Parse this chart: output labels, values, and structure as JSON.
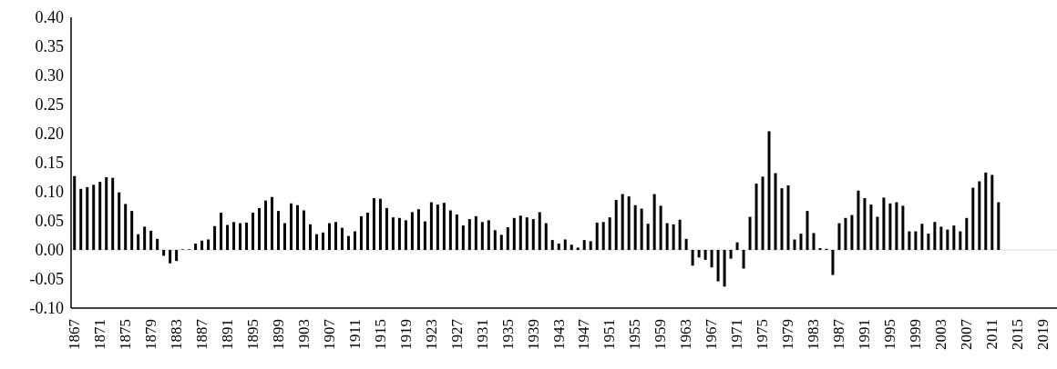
{
  "chart_data": {
    "type": "bar",
    "categories": [
      "1867",
      null,
      null,
      null,
      "1871",
      null,
      null,
      null,
      "1875",
      null,
      null,
      null,
      "1879",
      null,
      null,
      null,
      "1883",
      null,
      null,
      null,
      "1887",
      null,
      null,
      null,
      "1891",
      null,
      null,
      null,
      "1895",
      null,
      null,
      null,
      "1899",
      null,
      null,
      null,
      "1903",
      null,
      null,
      null,
      "1907",
      null,
      null,
      null,
      "1911",
      null,
      null,
      null,
      "1915",
      null,
      null,
      null,
      "1919",
      null,
      null,
      null,
      "1923",
      null,
      null,
      null,
      "1927",
      null,
      null,
      null,
      "1931",
      null,
      null,
      null,
      "1935",
      null,
      null,
      null,
      "1939",
      null,
      null,
      null,
      "1943",
      null,
      null,
      null,
      "1947",
      null,
      null,
      null,
      "1951",
      null,
      null,
      null,
      "1955",
      null,
      null,
      null,
      "1959",
      null,
      null,
      null,
      "1963",
      null,
      null,
      null,
      "1967",
      null,
      null,
      null,
      "1971",
      null,
      null,
      null,
      "1975",
      null,
      null,
      null,
      "1979",
      null,
      null,
      null,
      "1983",
      null,
      null,
      null,
      "1987",
      null,
      null,
      null,
      "1991",
      null,
      null,
      null,
      "1995",
      null,
      null,
      null,
      "1999",
      null,
      null,
      null,
      "2003",
      null,
      null,
      null,
      "2007",
      null,
      null,
      null,
      "2011",
      null,
      null,
      null,
      "2015",
      null,
      null,
      null,
      "2019",
      null,
      null
    ],
    "values": [
      0.127,
      0.105,
      0.108,
      0.112,
      0.117,
      0.125,
      0.124,
      0.099,
      0.079,
      0.067,
      0.027,
      0.04,
      0.033,
      0.019,
      -0.01,
      -0.023,
      -0.019,
      0.001,
      0.001,
      0.011,
      0.016,
      0.018,
      0.041,
      0.064,
      0.043,
      0.048,
      0.046,
      0.047,
      0.064,
      0.072,
      0.085,
      0.091,
      0.067,
      0.046,
      0.08,
      0.077,
      0.068,
      0.044,
      0.027,
      0.03,
      0.046,
      0.048,
      0.038,
      0.024,
      0.032,
      0.058,
      0.064,
      0.089,
      0.088,
      0.072,
      0.056,
      0.055,
      0.051,
      0.065,
      0.07,
      0.049,
      0.082,
      0.078,
      0.081,
      0.068,
      0.061,
      0.042,
      0.053,
      0.058,
      0.048,
      0.051,
      0.034,
      0.026,
      0.039,
      0.055,
      0.059,
      0.056,
      0.053,
      0.065,
      0.046,
      0.017,
      0.011,
      0.018,
      0.009,
      0.004,
      0.017,
      0.015,
      0.047,
      0.048,
      0.056,
      0.086,
      0.096,
      0.092,
      0.077,
      0.071,
      0.045,
      0.096,
      0.076,
      0.046,
      0.044,
      0.052,
      0.019,
      -0.027,
      -0.013,
      -0.017,
      -0.03,
      -0.054,
      -0.063,
      -0.015,
      0.013,
      -0.032,
      0.057,
      0.114,
      0.126,
      0.204,
      0.132,
      0.106,
      0.111,
      0.018,
      0.028,
      0.067,
      0.029,
      0.003,
      0.002,
      -0.043,
      0.046,
      0.055,
      0.06,
      0.102,
      0.089,
      0.078,
      0.057,
      0.09,
      0.08,
      0.082,
      0.076,
      0.032,
      0.032,
      0.045,
      0.028,
      0.048,
      0.04,
      0.035,
      0.042,
      0.032,
      0.055,
      0.107,
      0.118,
      0.133,
      0.129,
      0.082,
      null,
      null,
      null,
      null,
      null,
      null,
      null,
      null,
      null
    ],
    "color": "#000000",
    "ylim": [
      -0.1,
      0.4
    ],
    "yticks": [
      {
        "value": -0.1,
        "label": "-0.10"
      },
      {
        "value": -0.05,
        "label": "-0.05"
      },
      {
        "value": 0,
        "label": "0.00"
      },
      {
        "value": 0.05,
        "label": "0.05"
      },
      {
        "value": 0.1,
        "label": "0.10"
      },
      {
        "value": 0.15,
        "label": "0.15"
      },
      {
        "value": 0.2,
        "label": "0.20"
      },
      {
        "value": 0.25,
        "label": "0.25"
      },
      {
        "value": 0.3,
        "label": "0.30"
      },
      {
        "value": 0.35,
        "label": "0.35"
      },
      {
        "value": 0.4,
        "label": "0.40"
      }
    ],
    "ref_lines": [
      {
        "axis": "y",
        "value": 0,
        "color": "#d9d9d9"
      }
    ],
    "grid": false,
    "legend": false
  }
}
